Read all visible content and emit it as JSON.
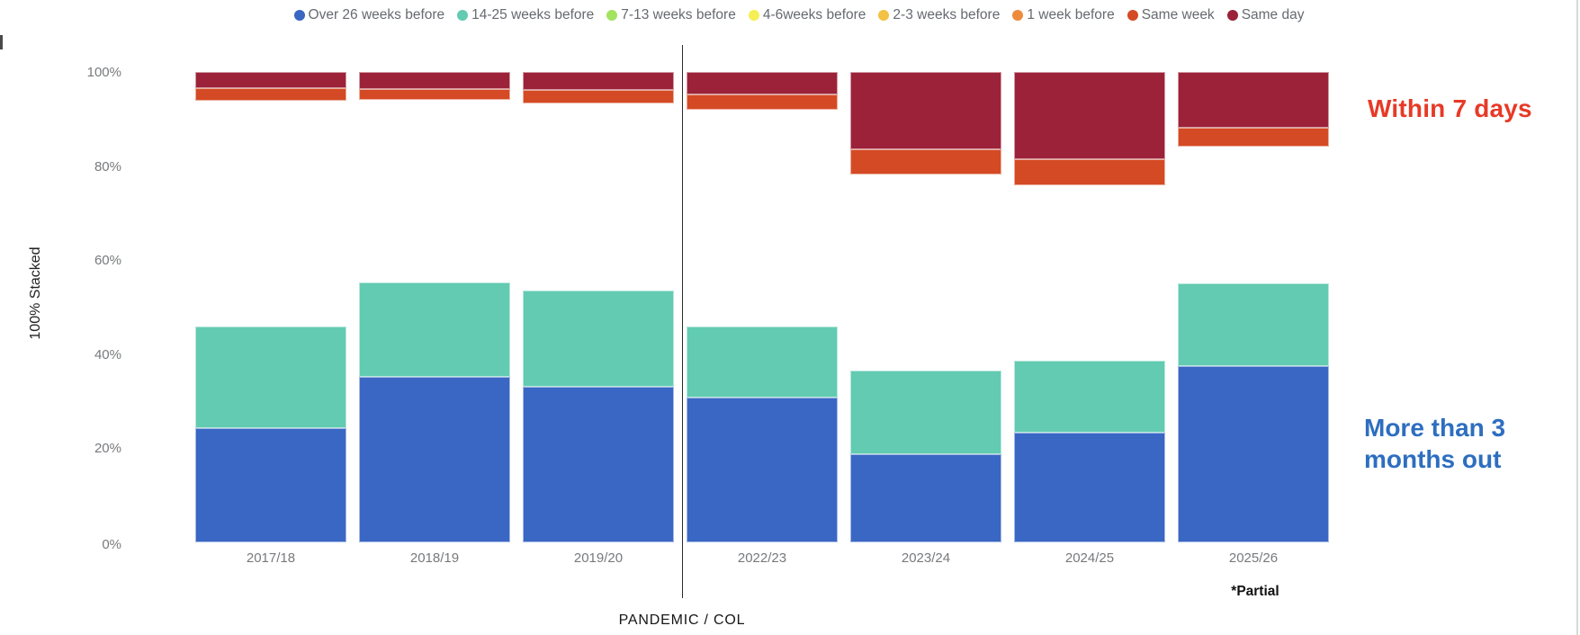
{
  "legend": {
    "items": [
      {
        "label": "Over 26 weeks before",
        "color": "#3a66c4"
      },
      {
        "label": "14-25 weeks before",
        "color": "#62cbb2"
      },
      {
        "label": "7-13 weeks before",
        "color": "#a2e360"
      },
      {
        "label": "4-6weeks before",
        "color": "#f5ee54"
      },
      {
        "label": "2-3 weeks before",
        "color": "#f3c144"
      },
      {
        "label": "1 week before",
        "color": "#ec8b3c"
      },
      {
        "label": "Same week",
        "color": "#d44a24"
      },
      {
        "label": "Same day",
        "color": "#9b2239"
      }
    ]
  },
  "y_axis": {
    "title": "100% Stacked",
    "ticks": [
      100,
      80,
      60,
      40,
      20,
      0
    ],
    "unit": "%"
  },
  "annotations": {
    "within7": "Within 7 days",
    "within7_color": "#e63a27",
    "more3": "More than 3\nmonths out",
    "more3_color": "#2d6ec0",
    "pandemic": "PANDEMIC / COL",
    "partial": "*Partial"
  },
  "chart_data": {
    "type": "bar",
    "subtype": "100% stacked column chart",
    "title": "",
    "xlabel": "",
    "ylabel": "100% Stacked",
    "ylim": [
      0,
      100
    ],
    "grid": false,
    "legend_position": "top-center",
    "categories": [
      "2017/18",
      "2018/19",
      "2019/20",
      "2022/23",
      "2023/24",
      "2024/25",
      "2025/26"
    ],
    "series": [
      {
        "name": "Over 26 weeks before",
        "color": "#3a66c4",
        "rendered": true,
        "values": [
          24.3,
          35.2,
          33.0,
          30.8,
          18.8,
          23.3,
          37.5
        ]
      },
      {
        "name": "14-25 weeks before",
        "color": "#62cbb2",
        "rendered": true,
        "values": [
          21.5,
          20.0,
          20.6,
          15.0,
          17.8,
          15.3,
          17.5
        ]
      },
      {
        "name": "7-13 weeks before",
        "color": "#a2e360",
        "rendered": false,
        "values": null,
        "rendered_as": "white space (part of combined middle block)"
      },
      {
        "name": "4-6weeks before",
        "color": "#f5ee54",
        "rendered": false,
        "values": null,
        "rendered_as": "white space (part of combined middle block)"
      },
      {
        "name": "2-3 weeks before",
        "color": "#f3c144",
        "rendered": false,
        "values": null,
        "rendered_as": "white space (part of combined middle block)"
      },
      {
        "name": "1 week before",
        "color": "#ec8b3c",
        "rendered": false,
        "values": null,
        "rendered_as": "white space (part of combined middle block)"
      },
      {
        "name": "Same week",
        "color": "#d44a24",
        "rendered": true,
        "values": [
          2.7,
          2.2,
          2.9,
          3.2,
          5.4,
          5.5,
          4.1
        ]
      },
      {
        "name": "Same day",
        "color": "#9b2239",
        "rendered": true,
        "values": [
          3.5,
          3.7,
          3.8,
          4.8,
          16.4,
          18.5,
          11.8
        ]
      }
    ],
    "hidden_middle_combined": {
      "series": [
        "7-13 weeks before",
        "4-6weeks before",
        "2-3 weeks before",
        "1 week before"
      ],
      "values": [
        48.0,
        38.9,
        39.7,
        46.2,
        41.6,
        37.4,
        29.1
      ]
    },
    "render_stack": [
      {
        "label": "Over 26 weeks before",
        "color": "#3a66c4",
        "values": [
          24.3,
          35.2,
          33.0,
          30.8,
          18.8,
          23.3,
          37.5
        ]
      },
      {
        "label": "14-25 weeks before",
        "color": "#62cbb2",
        "values": [
          21.5,
          20.0,
          20.6,
          15.0,
          17.8,
          15.3,
          17.5
        ]
      },
      {
        "label": "middle categories (rendered white)",
        "color": "transparent",
        "values": [
          48.0,
          38.9,
          39.7,
          46.2,
          41.6,
          37.4,
          29.1
        ]
      },
      {
        "label": "Same week",
        "color": "#d44a24",
        "values": [
          2.7,
          2.2,
          2.9,
          3.2,
          5.4,
          5.5,
          4.1
        ]
      },
      {
        "label": "Same day",
        "color": "#9b2239",
        "values": [
          3.5,
          3.7,
          3.8,
          4.8,
          16.4,
          18.5,
          11.8
        ]
      }
    ],
    "separator": {
      "label": "PANDEMIC / COL",
      "between": [
        "2019/20",
        "2022/23"
      ]
    },
    "notes": {
      "partial_label": "*Partial",
      "partial_category": "2025/26"
    }
  }
}
